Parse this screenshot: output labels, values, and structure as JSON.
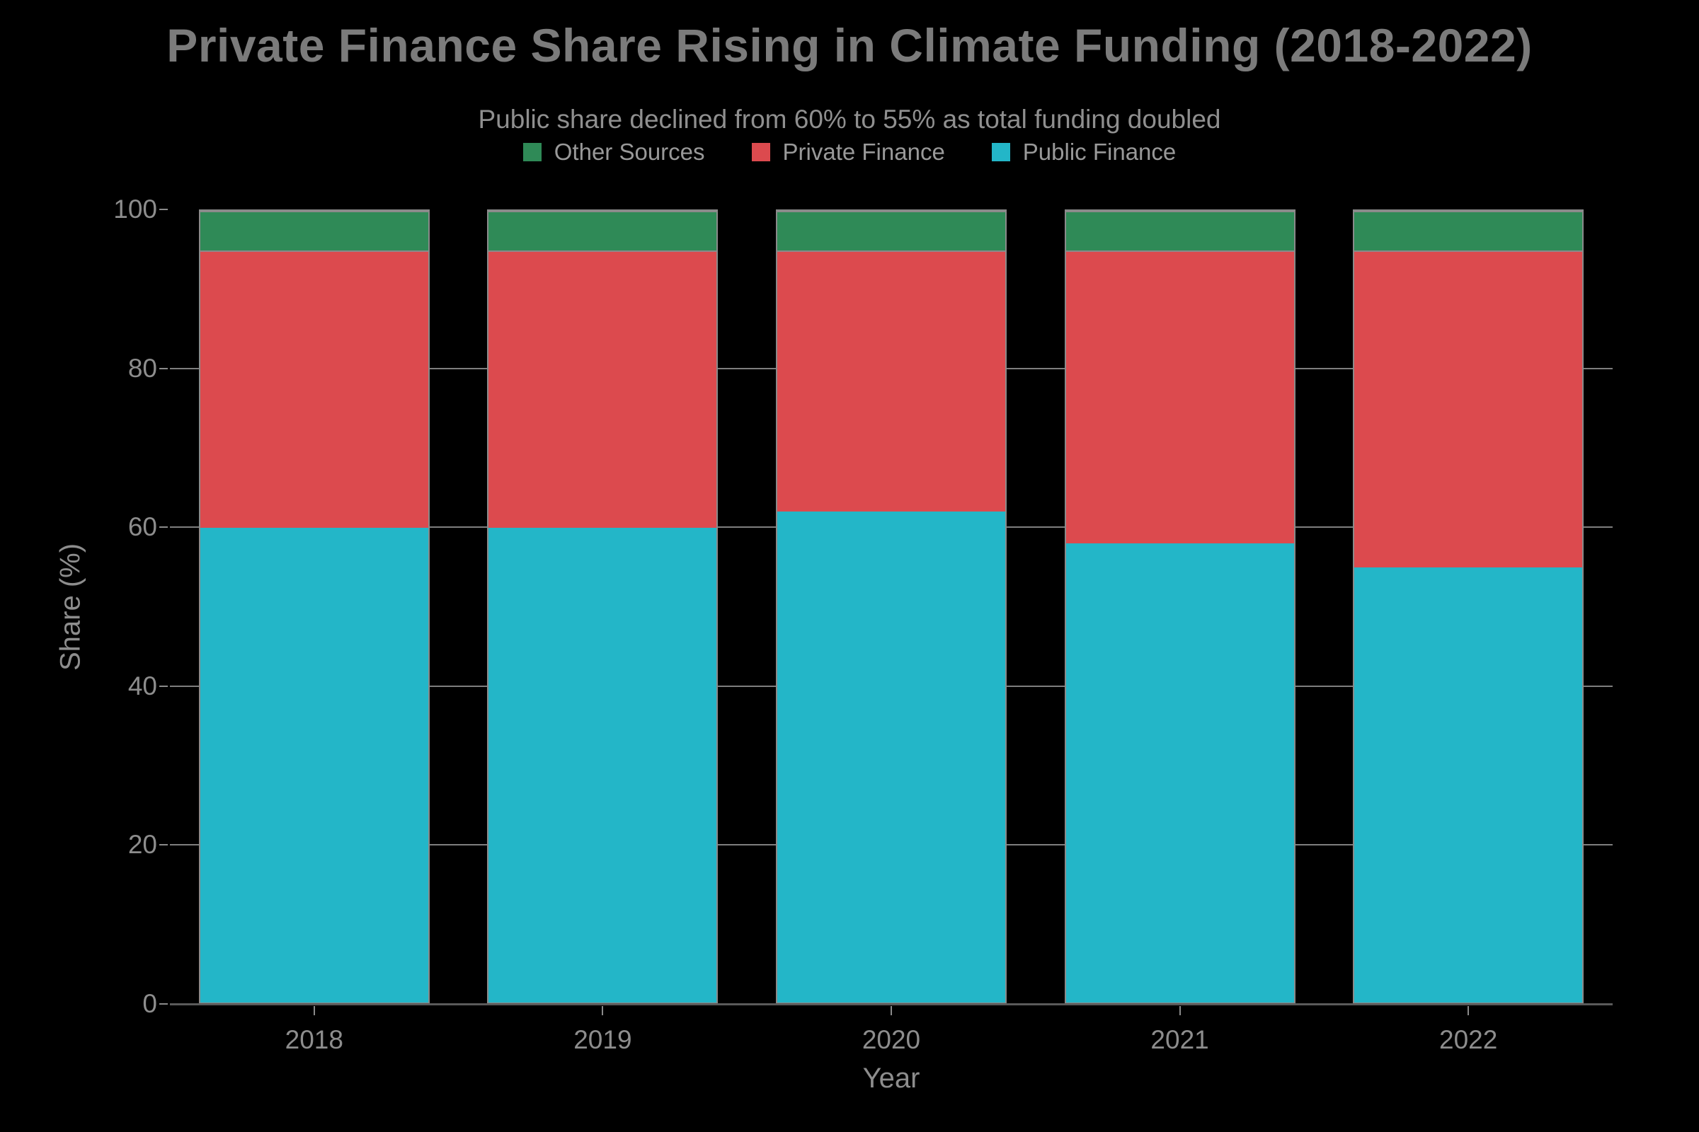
{
  "header": {
    "title": "Private Finance Share Rising in Climate Funding (2018-2022)",
    "subtitle": "Public share declined from 60% to 55% as total funding doubled"
  },
  "colors": {
    "background": "#000000",
    "public_finance": "#23b6c8",
    "private_finance": "#dc4a4e",
    "other_sources": "#2f8a57",
    "gridline": "#7e7e7e",
    "axis_line": "#5a5a5a",
    "text_muted": "#8d8d8d",
    "title_text": "#7b7b7b"
  },
  "chart_data": {
    "type": "bar",
    "stacked": true,
    "title": "Private Finance Share Rising in Climate Funding (2018-2022)",
    "subtitle": "Public share declined from 60% to 55% as total funding doubled",
    "categories": [
      "2018",
      "2019",
      "2020",
      "2021",
      "2022"
    ],
    "series": [
      {
        "name": "Public Finance",
        "color": "#23b6c8",
        "values": [
          60,
          60,
          62,
          58,
          55
        ]
      },
      {
        "name": "Private Finance",
        "color": "#dc4a4e",
        "values": [
          35,
          35,
          33,
          37,
          40
        ]
      },
      {
        "name": "Other Sources",
        "color": "#2f8a57",
        "values": [
          5,
          5,
          5,
          5,
          5
        ]
      }
    ],
    "legend_order": [
      "Other Sources",
      "Private Finance",
      "Public Finance"
    ],
    "legend_position": "top-center",
    "xlabel": "Year",
    "ylabel": "Share (%)",
    "ylim": [
      0,
      100
    ],
    "yticks": [
      0,
      20,
      40,
      60,
      80,
      100
    ],
    "gridlines": [
      20,
      40,
      60,
      80
    ],
    "grid": true
  }
}
